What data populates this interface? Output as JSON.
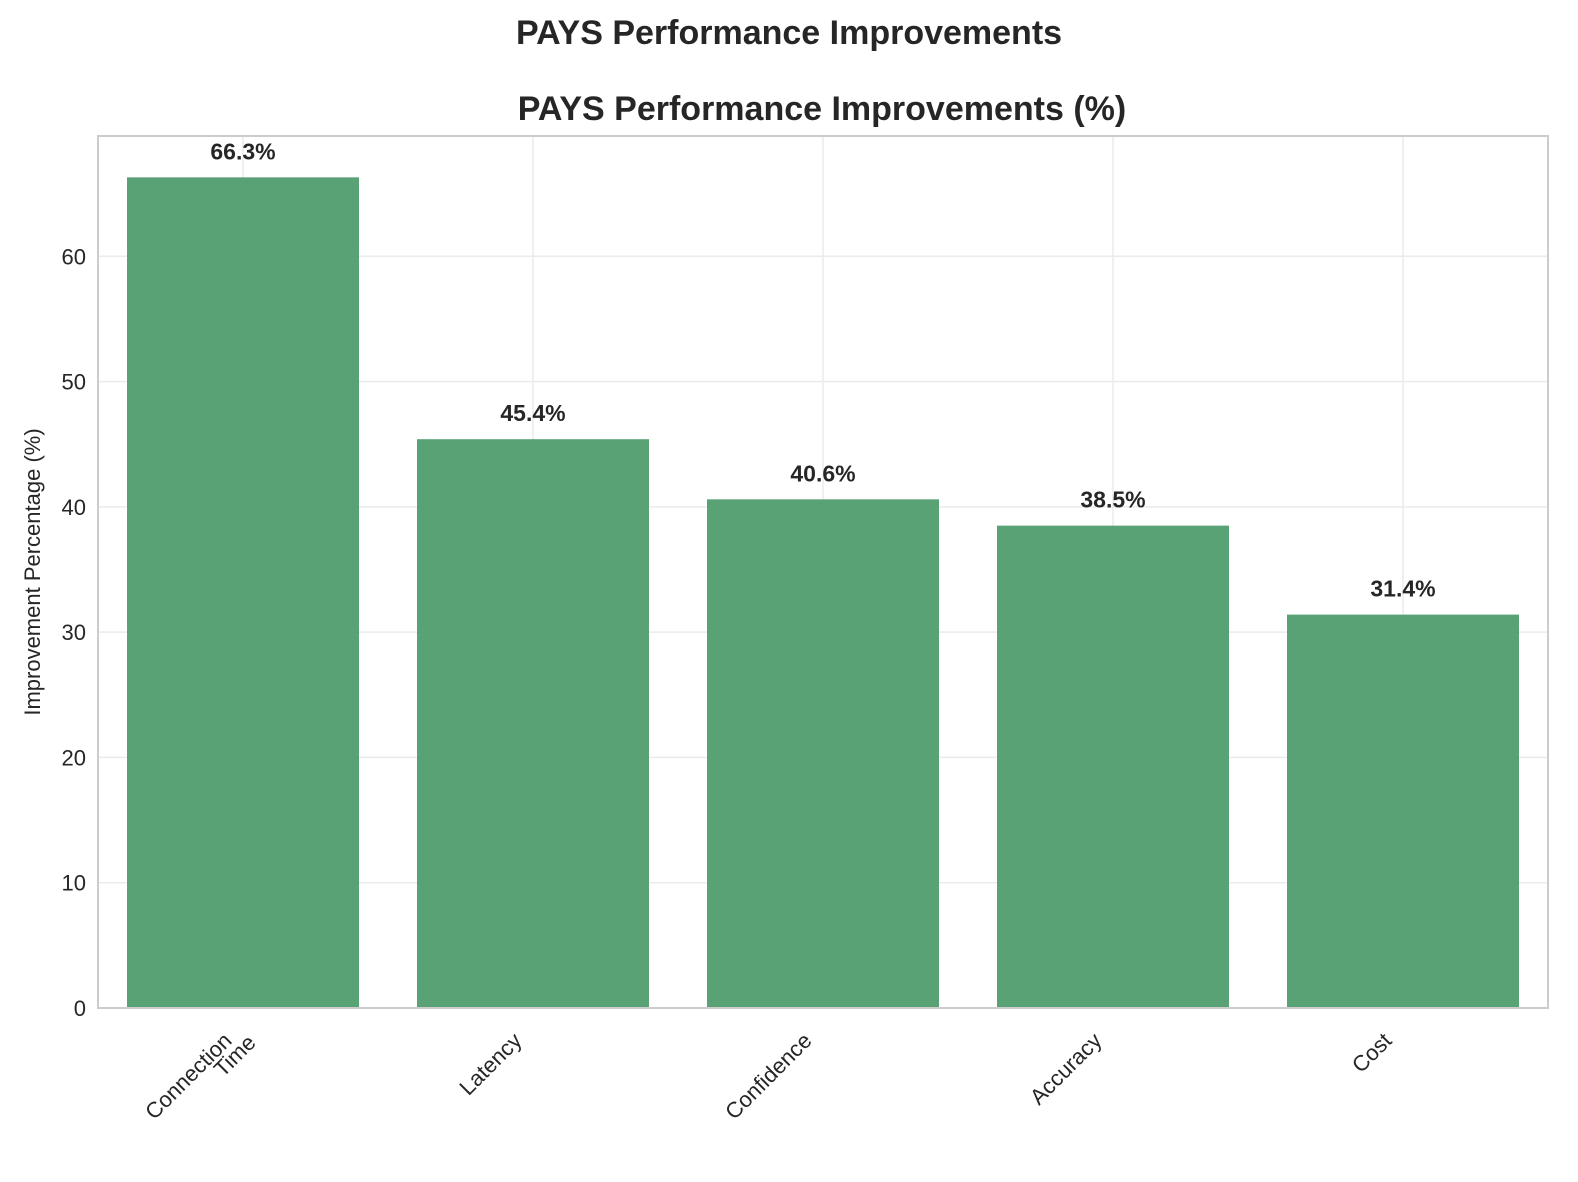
{
  "figure_title": "PAYS Performance Improvements",
  "chart_data": {
    "type": "bar",
    "title": "PAYS Performance Improvements (%)",
    "xlabel": "",
    "ylabel": "Improvement Percentage (%)",
    "categories": [
      [
        "Connection",
        "Time"
      ],
      [
        "Latency"
      ],
      [
        "Confidence"
      ],
      [
        "Accuracy"
      ],
      [
        "Cost"
      ]
    ],
    "values": [
      66.3,
      45.4,
      40.6,
      38.5,
      31.4
    ],
    "value_labels": [
      "66.3%",
      "45.4%",
      "40.6%",
      "38.5%",
      "31.4%"
    ],
    "ylim": [
      0,
      69.6
    ],
    "yticks": [
      0,
      10,
      20,
      30,
      40,
      50,
      60
    ],
    "grid": true,
    "bar_color": "#4a9a6a",
    "grid_color": "#ebebeb",
    "frame_color": "#cccccc"
  }
}
